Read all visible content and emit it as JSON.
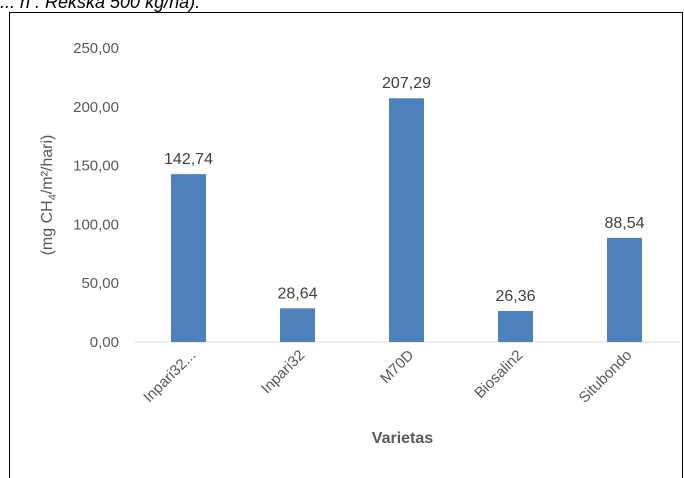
{
  "caption": "... n . Rekska 500 kg/ha).",
  "chart_data": {
    "type": "bar",
    "categories": [
      "Inpari32...",
      "Inpari32",
      "M70D",
      "Biosalin2",
      "Situbondo"
    ],
    "values": [
      142.74,
      28.64,
      207.29,
      26.36,
      88.54
    ],
    "value_labels": [
      "142,74",
      "28,64",
      "207,29",
      "26,36",
      "88,54"
    ],
    "y_ticks": [
      "0,00",
      "50,00",
      "100,00",
      "150,00",
      "200,00",
      "250,00"
    ],
    "y_tick_values": [
      0,
      50,
      100,
      150,
      200,
      250
    ],
    "ylim": [
      0,
      250
    ],
    "xlabel": "Varietas",
    "ylabel_prefix": "(mg CH",
    "ylabel_sub": "4",
    "ylabel_suffix": "/m²/hari)",
    "bar_color": "#4f81bd",
    "grid": false
  }
}
